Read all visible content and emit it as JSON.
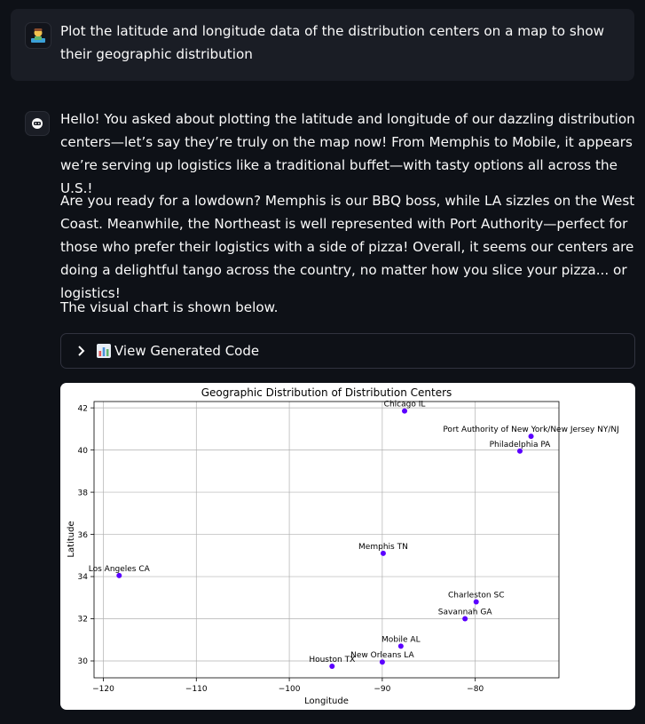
{
  "user_message": {
    "avatar_icon": "user-avatar-icon",
    "text": "Plot the latitude and longitude data of the distribution centers on a map to show their geographic distribution"
  },
  "assistant_message": {
    "avatar_icon": "assistant-avatar-icon",
    "paragraphs": [
      "Hello! You asked about plotting the latitude and longitude of our dazzling distribution centers—let’s say they’re truly on the map now! From Memphis to Mobile, it appears we’re serving up logistics like a traditional buffet—with tasty options all across the U.S.!",
      "Are you ready for a lowdown? Memphis is our BBQ boss, while LA sizzles on the West Coast. Meanwhile, the Northeast is well represented with Port Authority—perfect for those who prefer their logistics with a side of pizza! Overall, it seems our centers are doing a delightful tango across the country, no matter how you slice your pizza... or logistics!",
      "The visual chart is shown below."
    ],
    "expander": {
      "label": "View Generated Code",
      "icon": "bar-chart-emoji-icon",
      "chevron_icon": "chevron-right-icon"
    }
  },
  "chart_data": {
    "type": "scatter",
    "title": "Geographic Distribution of Distribution Centers",
    "xlabel": "Longitude",
    "ylabel": "Latitude",
    "xlim": [
      -121,
      -71
    ],
    "ylim": [
      29.2,
      42.3
    ],
    "xticks": [
      -120,
      -110,
      -100,
      -90,
      -80
    ],
    "yticks": [
      30,
      32,
      34,
      36,
      38,
      40,
      42
    ],
    "grid": true,
    "marker_color": "#5b00ff",
    "points": [
      {
        "label": "Chicago IL",
        "x": -87.6,
        "y": 41.85
      },
      {
        "label": "Port Authority of New York/New Jersey NY/NJ",
        "x": -74.0,
        "y": 40.65
      },
      {
        "label": "Philadelphia PA",
        "x": -75.2,
        "y": 39.95
      },
      {
        "label": "Memphis TN",
        "x": -89.9,
        "y": 35.1
      },
      {
        "label": "Los Angeles CA",
        "x": -118.3,
        "y": 34.05
      },
      {
        "label": "Charleston SC",
        "x": -79.9,
        "y": 32.8
      },
      {
        "label": "Savannah GA",
        "x": -81.1,
        "y": 32.0
      },
      {
        "label": "Mobile AL",
        "x": -88.0,
        "y": 30.7
      },
      {
        "label": "New Orleans LA",
        "x": -90.0,
        "y": 29.95
      },
      {
        "label": "Houston TX",
        "x": -95.4,
        "y": 29.75
      }
    ]
  }
}
